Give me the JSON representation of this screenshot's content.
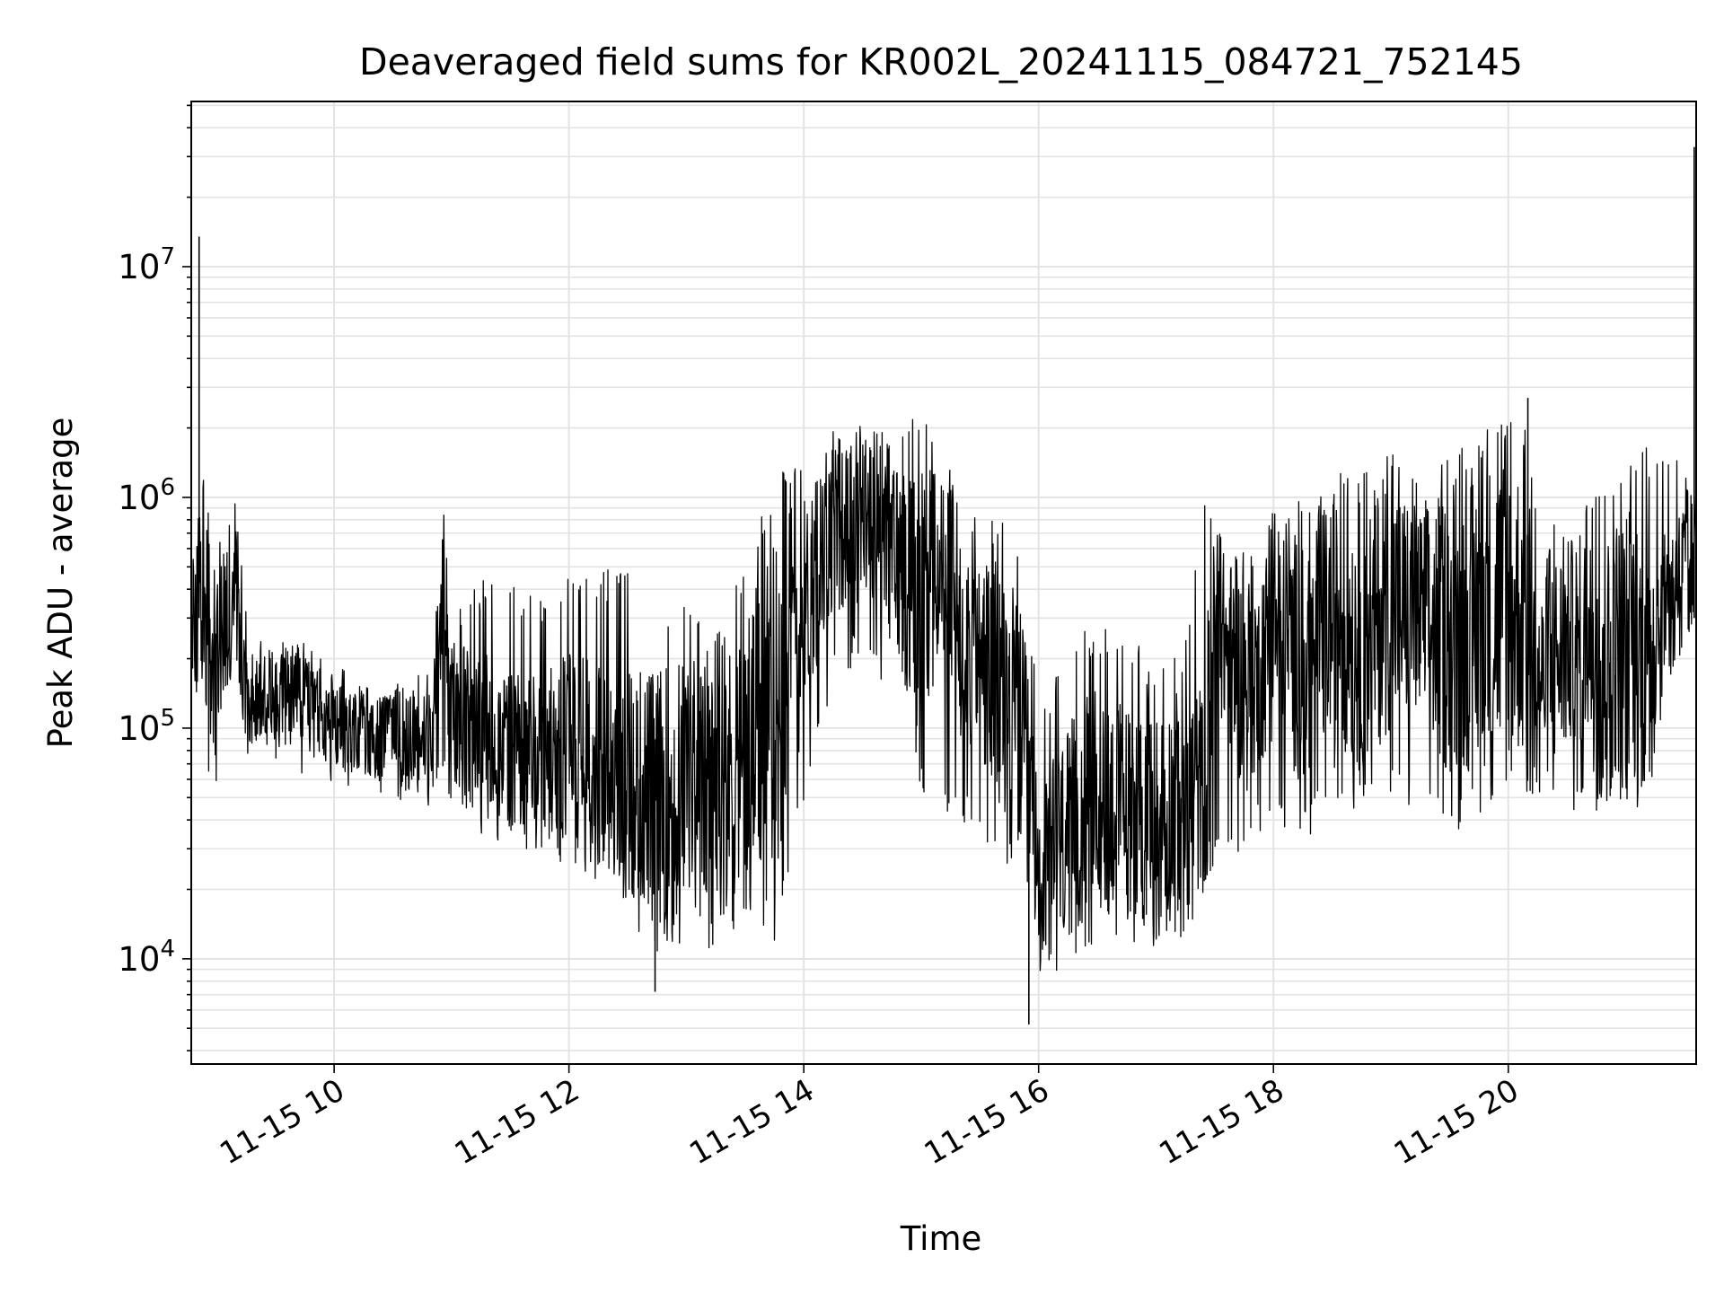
{
  "chart_data": {
    "type": "line",
    "title": "Deaveraged field sums for KR002L_20241115_084721_752145",
    "xlabel": "Time",
    "ylabel": "Peak ADU - average",
    "x_range": [
      "2024-11-15T08:47",
      "2024-11-15T21:36"
    ],
    "y_scale": "log",
    "ylim": [
      3500,
      52000000
    ],
    "grid": "major and minor, light grey",
    "line_color": "#000000",
    "x_ticks": [
      {
        "time": "2024-11-15T10:00",
        "label": "11-15 10"
      },
      {
        "time": "2024-11-15T12:00",
        "label": "11-15 12"
      },
      {
        "time": "2024-11-15T14:00",
        "label": "11-15 14"
      },
      {
        "time": "2024-11-15T16:00",
        "label": "11-15 16"
      },
      {
        "time": "2024-11-15T18:00",
        "label": "11-15 18"
      },
      {
        "time": "2024-11-15T20:00",
        "label": "11-15 20"
      }
    ],
    "y_ticks": [
      {
        "value": 10000,
        "base": "10",
        "exp": "4"
      },
      {
        "value": 100000,
        "base": "10",
        "exp": "5"
      },
      {
        "value": 1000000,
        "base": "10",
        "exp": "6"
      },
      {
        "value": 10000000,
        "base": "10",
        "exp": "7"
      }
    ],
    "series": [
      {
        "color": "#000000",
        "x": [
          "2024-11-15T08:47",
          "2024-11-15T08:53",
          "2024-11-15T08:58",
          "2024-11-15T09:04",
          "2024-11-15T09:10",
          "2024-11-15T09:16",
          "2024-11-15T09:22",
          "2024-11-15T09:30",
          "2024-11-15T09:40",
          "2024-11-15T09:50",
          "2024-11-15T10:00",
          "2024-11-15T10:10",
          "2024-11-15T10:20",
          "2024-11-15T10:30",
          "2024-11-15T10:40",
          "2024-11-15T10:50",
          "2024-11-15T10:55",
          "2024-11-15T11:00",
          "2024-11-15T11:05",
          "2024-11-15T11:15",
          "2024-11-15T11:30",
          "2024-11-15T11:45",
          "2024-11-15T12:00",
          "2024-11-15T12:15",
          "2024-11-15T12:30",
          "2024-11-15T12:45",
          "2024-11-15T13:00",
          "2024-11-15T13:15",
          "2024-11-15T13:30",
          "2024-11-15T13:45",
          "2024-11-15T13:55",
          "2024-11-15T14:05",
          "2024-11-15T14:15",
          "2024-11-15T14:30",
          "2024-11-15T14:40",
          "2024-11-15T14:50",
          "2024-11-15T15:00",
          "2024-11-15T15:10",
          "2024-11-15T15:20",
          "2024-11-15T15:30",
          "2024-11-15T15:40",
          "2024-11-15T15:50",
          "2024-11-15T15:55",
          "2024-11-15T16:00",
          "2024-11-15T16:10",
          "2024-11-15T16:20",
          "2024-11-15T16:30",
          "2024-11-15T16:45",
          "2024-11-15T17:00",
          "2024-11-15T17:15",
          "2024-11-15T17:25",
          "2024-11-15T17:30",
          "2024-11-15T17:45",
          "2024-11-15T18:00",
          "2024-11-15T18:15",
          "2024-11-15T18:30",
          "2024-11-15T18:45",
          "2024-11-15T19:00",
          "2024-11-15T19:15",
          "2024-11-15T19:30",
          "2024-11-15T19:45",
          "2024-11-15T20:00",
          "2024-11-15T20:10",
          "2024-11-15T20:15",
          "2024-11-15T20:25",
          "2024-11-15T20:35",
          "2024-11-15T20:50",
          "2024-11-15T21:00",
          "2024-11-15T21:10",
          "2024-11-15T21:20",
          "2024-11-15T21:30",
          "2024-11-15T21:36"
        ],
        "y": [
          250000,
          350000,
          200000,
          280000,
          400000,
          130000,
          140000,
          130000,
          150000,
          120000,
          110000,
          95000,
          85000,
          100000,
          90000,
          100000,
          400000,
          120000,
          110000,
          95000,
          85000,
          70000,
          90000,
          70000,
          60000,
          50000,
          60000,
          50000,
          80000,
          110000,
          250000,
          400000,
          700000,
          800000,
          700000,
          500000,
          400000,
          500000,
          300000,
          200000,
          150000,
          100000,
          60000,
          20000,
          30000,
          40000,
          50000,
          45000,
          40000,
          50000,
          55000,
          300000,
          150000,
          250000,
          200000,
          300000,
          250000,
          350000,
          300000,
          250000,
          300000,
          350000,
          300000,
          150000,
          200000,
          250000,
          200000,
          250000,
          200000,
          350000,
          500000,
          600000
        ],
        "y_low": [
          150000,
          70000,
          50000,
          80000,
          100000,
          70000,
          60000,
          70000,
          60000,
          60000,
          55000,
          55000,
          45000,
          50000,
          45000,
          40000,
          60000,
          45000,
          40000,
          35000,
          30000,
          25000,
          25000,
          20000,
          15000,
          10000,
          12000,
          10000,
          15000,
          12000,
          30000,
          80000,
          150000,
          200000,
          150000,
          80000,
          50000,
          40000,
          40000,
          35000,
          25000,
          20000,
          15000,
          7000,
          8000,
          10000,
          12000,
          12000,
          10000,
          12000,
          15000,
          25000,
          30000,
          40000,
          30000,
          50000,
          40000,
          50000,
          40000,
          35000,
          40000,
          50000,
          50000,
          50000,
          45000,
          40000,
          45000,
          40000,
          35000,
          150000,
          200000,
          250000
        ],
        "y_high": [
          500000,
          1300000,
          600000,
          700000,
          1000000,
          250000,
          250000,
          250000,
          280000,
          220000,
          200000,
          160000,
          150000,
          160000,
          170000,
          180000,
          1200000,
          300000,
          350000,
          450000,
          450000,
          400000,
          500000,
          450000,
          600000,
          300000,
          350000,
          250000,
          600000,
          1100000,
          1600000,
          1200000,
          2000000,
          2200000,
          2300000,
          2000000,
          2600000,
          1500000,
          1500000,
          700000,
          1000000,
          600000,
          400000,
          100000,
          200000,
          250000,
          300000,
          250000,
          200000,
          250000,
          1300000,
          800000,
          600000,
          900000,
          1000000,
          1300000,
          1400000,
          1700000,
          1200000,
          1500000,
          2000000,
          2500000,
          2000000,
          700000,
          800000,
          900000,
          1100000,
          1300000,
          1800000,
          1400000,
          1500000,
          1200000
        ]
      }
    ],
    "spikes": [
      {
        "x": "2024-11-15T08:51",
        "y": 13500000
      },
      {
        "x": "2024-11-15T12:44",
        "y": 7200
      },
      {
        "x": "2024-11-15T15:55",
        "y": 5200
      },
      {
        "x": "2024-11-15T20:10",
        "y": 2700000
      },
      {
        "x": "2024-11-15T21:35",
        "y": 33000000
      }
    ]
  }
}
